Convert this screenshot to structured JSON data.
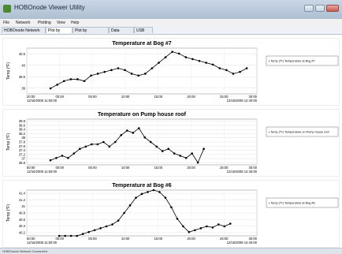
{
  "window": {
    "title": "HOBOnode Viewer Utility"
  },
  "menu": {
    "items": [
      "File",
      "Network",
      "Plotting",
      "View",
      "Help"
    ]
  },
  "tabs": {
    "items": [
      "HOBOnode Network",
      "Plot by Node",
      "Plot by Measurement",
      "Data Search",
      "USB Log"
    ],
    "active": 1
  },
  "status": {
    "text": "HOBOnode Network Connected"
  },
  "chart_data": [
    {
      "type": "line",
      "title": "Temperature at Bog #7",
      "ylabel": "Temp (°F)",
      "legend": "• Temp (°F) Temperature at Bog #7",
      "x_tick_labels": [
        "20:00\n12/16/2008 11:50:00",
        "00:00",
        "05:00",
        "10:00",
        "15:00",
        "20:00",
        "25:00",
        "30:00\n12/16/2008 12:40:00"
      ],
      "y_tick_labels": [
        "40.5",
        "40",
        "39.5",
        "39"
      ],
      "ylim": [
        38.2,
        40.7
      ],
      "x": [
        2.5,
        3.5,
        4.5,
        5.5,
        6.5,
        7.5,
        8.5,
        9.5,
        10.5,
        11.5,
        12.5,
        13.5,
        14.5,
        15.5,
        16.5,
        17.5,
        18.5,
        19.5,
        20.5,
        21.5,
        22.5,
        23.5,
        24.5,
        25.5,
        26.5,
        27.5,
        28.5,
        29.5,
        30.5,
        31.5
      ],
      "values": [
        38.5,
        38.7,
        38.9,
        39.0,
        39.0,
        38.9,
        39.2,
        39.3,
        39.4,
        39.5,
        39.6,
        39.5,
        39.3,
        39.2,
        39.3,
        39.6,
        39.9,
        40.2,
        40.5,
        40.4,
        40.2,
        40.1,
        40.0,
        39.9,
        39.8,
        39.6,
        39.5,
        39.3,
        39.4,
        39.6
      ],
      "xlim": [
        -1,
        33
      ],
      "color": "#000000"
    },
    {
      "type": "line",
      "title": "Temperature on Pump house roof",
      "ylabel": "Temp (°F)",
      "legend": "• Temp (°F) Temperature on Pump house roof",
      "x_tick_labels": [
        "50:00\n12/16/2008 11:50:00",
        "00:00",
        "05:00",
        "10:00",
        "15:00",
        "20:00",
        "25:00",
        "30:00\n12/16/2008 12:40:00"
      ],
      "y_tick_labels": [
        "38.8",
        "38.6",
        "38.4",
        "38.2",
        "38",
        "37.8",
        "37.6",
        "37.4",
        "37.2",
        "37",
        "36.8"
      ],
      "ylim": [
        36.8,
        38.8
      ],
      "x": [
        1,
        2,
        3,
        4,
        5,
        6,
        7,
        8,
        9,
        10,
        11,
        12,
        13,
        14,
        15,
        16,
        17,
        18,
        19,
        20,
        21,
        22,
        23,
        24,
        25,
        26,
        27
      ],
      "values": [
        37.0,
        37.1,
        37.2,
        37.1,
        37.3,
        37.5,
        37.6,
        37.7,
        37.7,
        37.8,
        37.6,
        37.8,
        38.1,
        38.3,
        38.2,
        38.4,
        38.0,
        37.8,
        37.6,
        37.4,
        37.5,
        37.3,
        37.2,
        37.1,
        37.3,
        36.9,
        37.5
      ],
      "xlim": [
        -3,
        36
      ],
      "color": "#000000"
    },
    {
      "type": "line",
      "title": "Temperature at Bog #6",
      "ylabel": "Temp (°F)",
      "legend": "• Temp (°F) Temperature at Bog #6",
      "x_tick_labels": [
        "50:00\n12/16/2008 11:50:00",
        "00:00",
        "05:00",
        "10:00",
        "15:00",
        "20:00",
        "25:00",
        "30:00\n12/16/2008 12:40:00"
      ],
      "y_tick_labels": [
        "41.4",
        "41.2",
        "41",
        "40.8",
        "40.6",
        "40.4",
        "40.2"
      ],
      "ylim": [
        40.2,
        41.4
      ],
      "x": [
        2.5,
        3.5,
        4.5,
        5.5,
        6.5,
        7.5,
        8.5,
        9.5,
        10.5,
        11.5,
        12.5,
        13.5,
        14.5,
        15.5,
        16.5,
        17.5,
        18.5,
        19.5,
        20.5,
        21.5,
        22.5,
        23.5,
        24.5,
        25.5,
        26.5,
        27.5,
        28.5,
        29.5,
        30.5,
        31.5
      ],
      "values": [
        40.2,
        40.2,
        40.2,
        40.2,
        40.25,
        40.3,
        40.35,
        40.4,
        40.45,
        40.5,
        40.6,
        40.8,
        41.0,
        41.2,
        41.3,
        41.35,
        41.4,
        41.35,
        41.2,
        40.95,
        40.65,
        40.45,
        40.3,
        40.35,
        40.4,
        40.45,
        40.42,
        40.5,
        40.45,
        40.52
      ],
      "xlim": [
        -3,
        36
      ],
      "color": "#000000"
    }
  ]
}
